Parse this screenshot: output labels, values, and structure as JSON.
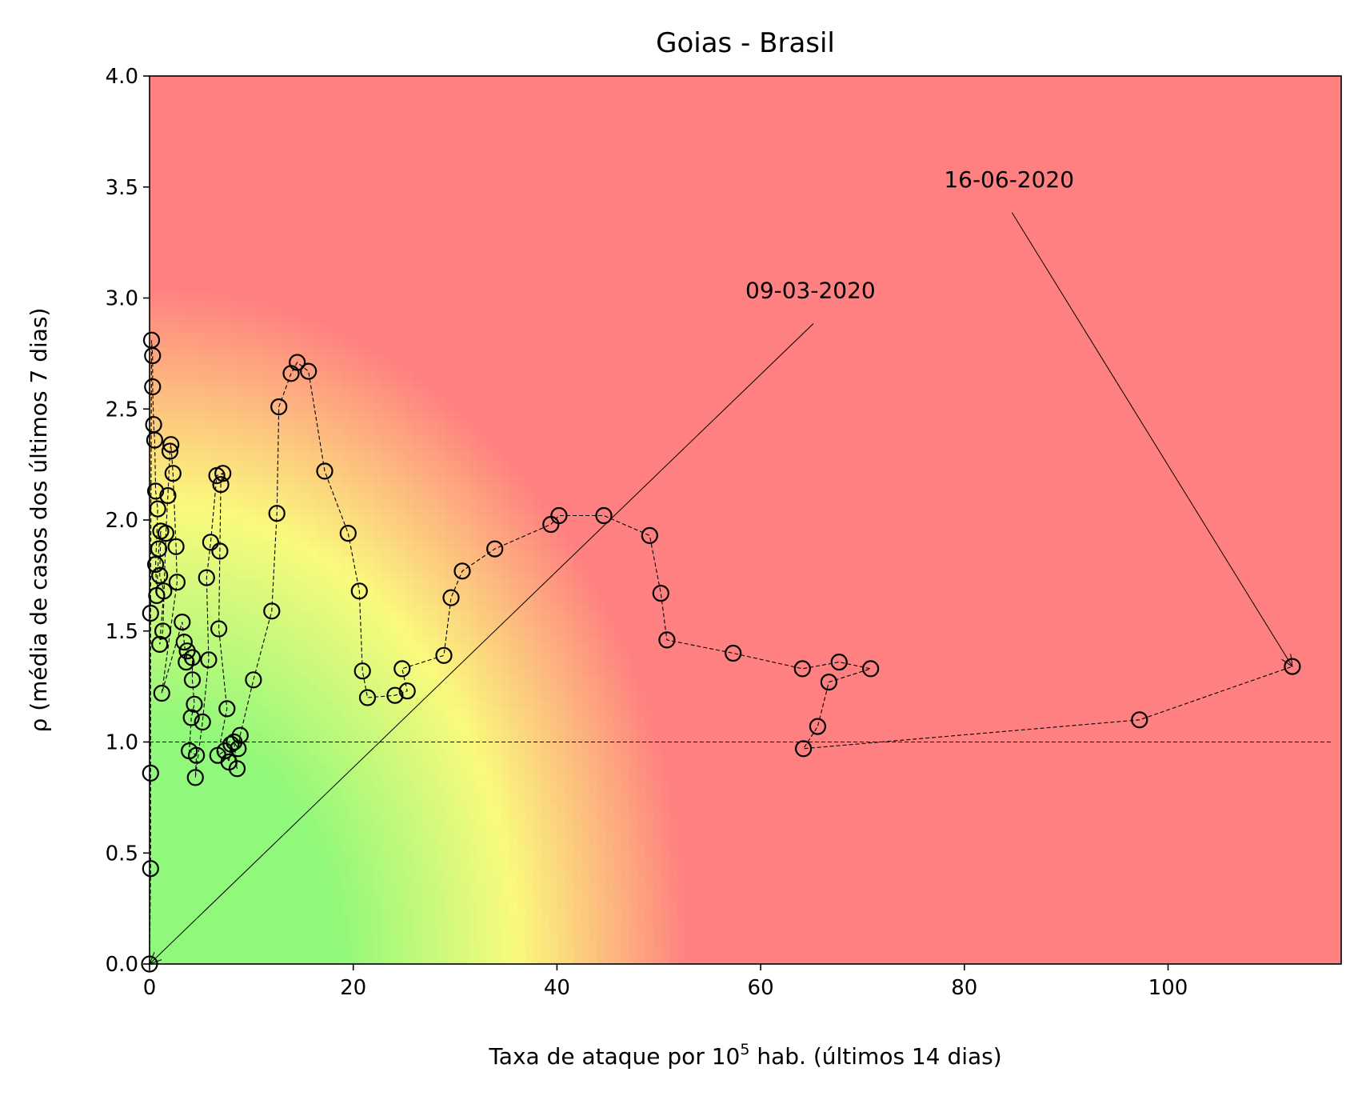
{
  "chart_data": {
    "type": "scatter",
    "title": "Goias - Brasil",
    "xlabel": {
      "pre": "Taxa de ataque por 10",
      "sup": "5",
      "post": " hab. (últimos 14 dias)"
    },
    "ylabel": "ρ (média de casos dos últimos 7 dias)",
    "xlim": [
      0,
      117
    ],
    "ylim": [
      0,
      4
    ],
    "xticks": [
      0,
      20,
      40,
      60,
      80,
      100
    ],
    "xtick_labels": [
      "0",
      "20",
      "40",
      "60",
      "80",
      "100"
    ],
    "yticks": [
      0,
      0.5,
      1,
      1.5,
      2,
      2.5,
      3,
      3.5,
      4
    ],
    "ytick_labels": [
      "0.0",
      "0.5",
      "1.0",
      "1.5",
      "2.0",
      "2.5",
      "3.0",
      "3.5",
      "4.0"
    ],
    "grid": false,
    "reference_line": {
      "y": 1.0,
      "style": "dashed",
      "color": "#000000"
    },
    "background": {
      "type": "risk-gradient",
      "colors": {
        "low": "#90f87a",
        "mid": "#fafa7d",
        "high": "#ff8080"
      }
    },
    "series": [
      {
        "marker": "open-circle",
        "line": "dashed",
        "color": "#000000",
        "points": [
          [
            0.0,
            0.0
          ],
          [
            0.1,
            0.43
          ],
          [
            0.1,
            0.86
          ],
          [
            0.1,
            1.58
          ],
          [
            0.2,
            2.81
          ],
          [
            0.3,
            2.74
          ],
          [
            0.3,
            2.6
          ],
          [
            0.4,
            2.43
          ],
          [
            0.5,
            2.36
          ],
          [
            0.6,
            2.13
          ],
          [
            0.6,
            1.8
          ],
          [
            0.7,
            1.66
          ],
          [
            0.8,
            2.05
          ],
          [
            0.9,
            1.87
          ],
          [
            1.0,
            1.75
          ],
          [
            1.0,
            1.44
          ],
          [
            1.1,
            1.95
          ],
          [
            1.2,
            1.22
          ],
          [
            1.3,
            1.5
          ],
          [
            1.4,
            1.68
          ],
          [
            1.6,
            1.94
          ],
          [
            1.8,
            2.11
          ],
          [
            2.0,
            2.31
          ],
          [
            2.1,
            2.34
          ],
          [
            2.3,
            2.21
          ],
          [
            2.6,
            1.88
          ],
          [
            2.7,
            1.72
          ],
          [
            3.2,
            1.54
          ],
          [
            3.4,
            1.45
          ],
          [
            3.6,
            1.36
          ],
          [
            3.7,
            1.41
          ],
          [
            3.9,
            0.96
          ],
          [
            4.1,
            1.11
          ],
          [
            4.2,
            1.38
          ],
          [
            4.2,
            1.28
          ],
          [
            4.4,
            1.17
          ],
          [
            4.5,
            0.84
          ],
          [
            4.6,
            0.94
          ],
          [
            5.2,
            1.09
          ],
          [
            5.6,
            1.74
          ],
          [
            5.8,
            1.37
          ],
          [
            6.0,
            1.9
          ],
          [
            6.6,
            2.2
          ],
          [
            6.7,
            0.94
          ],
          [
            6.8,
            1.51
          ],
          [
            6.9,
            1.86
          ],
          [
            7.0,
            2.16
          ],
          [
            7.2,
            2.21
          ],
          [
            7.4,
            0.96
          ],
          [
            7.6,
            1.15
          ],
          [
            7.8,
            0.91
          ],
          [
            8.0,
            0.99
          ],
          [
            8.3,
            1.0
          ],
          [
            8.6,
            0.88
          ],
          [
            8.7,
            0.97
          ],
          [
            8.9,
            1.03
          ],
          [
            10.2,
            1.28
          ],
          [
            12.0,
            1.59
          ],
          [
            12.5,
            2.03
          ],
          [
            12.7,
            2.51
          ],
          [
            13.9,
            2.66
          ],
          [
            14.5,
            2.71
          ],
          [
            15.6,
            2.67
          ],
          [
            17.2,
            2.22
          ],
          [
            19.5,
            1.94
          ],
          [
            20.6,
            1.68
          ],
          [
            20.9,
            1.32
          ],
          [
            21.4,
            1.2
          ],
          [
            24.1,
            1.21
          ],
          [
            24.8,
            1.33
          ],
          [
            25.3,
            1.23
          ],
          [
            28.9,
            1.39
          ],
          [
            29.6,
            1.65
          ],
          [
            30.7,
            1.77
          ],
          [
            33.9,
            1.87
          ],
          [
            39.4,
            1.98
          ],
          [
            40.2,
            2.02
          ],
          [
            44.6,
            2.02
          ],
          [
            49.1,
            1.93
          ],
          [
            50.2,
            1.67
          ],
          [
            50.8,
            1.46
          ],
          [
            57.3,
            1.4
          ],
          [
            64.1,
            1.33
          ],
          [
            64.2,
            0.97
          ],
          [
            65.6,
            1.07
          ],
          [
            66.7,
            1.27
          ],
          [
            67.7,
            1.36
          ],
          [
            70.8,
            1.33
          ],
          [
            97.2,
            1.1
          ],
          [
            112.2,
            1.34
          ]
        ],
        "path_order": [
          [
            0.0,
            0.0
          ],
          [
            0.1,
            0.43
          ],
          [
            0.1,
            0.86
          ],
          [
            0.1,
            1.58
          ],
          [
            0.2,
            2.81
          ],
          [
            0.3,
            2.74
          ],
          [
            0.3,
            2.6
          ],
          [
            0.4,
            2.43
          ],
          [
            0.5,
            2.36
          ],
          [
            0.6,
            2.13
          ],
          [
            0.8,
            2.05
          ],
          [
            0.6,
            1.8
          ],
          [
            0.7,
            1.66
          ],
          [
            0.9,
            1.87
          ],
          [
            1.1,
            1.95
          ],
          [
            1.0,
            1.75
          ],
          [
            1.4,
            1.68
          ],
          [
            1.0,
            1.44
          ],
          [
            1.3,
            1.5
          ],
          [
            1.6,
            1.94
          ],
          [
            1.8,
            2.11
          ],
          [
            2.0,
            2.31
          ],
          [
            2.1,
            2.34
          ],
          [
            2.3,
            2.21
          ],
          [
            2.6,
            1.88
          ],
          [
            2.7,
            1.72
          ],
          [
            1.2,
            1.22
          ],
          [
            3.2,
            1.54
          ],
          [
            3.4,
            1.45
          ],
          [
            3.6,
            1.36
          ],
          [
            3.7,
            1.41
          ],
          [
            4.2,
            1.38
          ],
          [
            4.2,
            1.28
          ],
          [
            4.4,
            1.17
          ],
          [
            4.1,
            1.11
          ],
          [
            3.9,
            0.96
          ],
          [
            4.6,
            0.94
          ],
          [
            4.5,
            0.84
          ],
          [
            5.2,
            1.09
          ],
          [
            5.8,
            1.37
          ],
          [
            5.6,
            1.74
          ],
          [
            6.0,
            1.9
          ],
          [
            6.6,
            2.2
          ],
          [
            7.2,
            2.21
          ],
          [
            7.0,
            2.16
          ],
          [
            6.9,
            1.86
          ],
          [
            6.8,
            1.51
          ],
          [
            7.6,
            1.15
          ],
          [
            6.7,
            0.94
          ],
          [
            7.4,
            0.96
          ],
          [
            7.8,
            0.91
          ],
          [
            8.0,
            0.99
          ],
          [
            8.6,
            0.88
          ],
          [
            8.3,
            1.0
          ],
          [
            8.7,
            0.97
          ],
          [
            8.9,
            1.03
          ],
          [
            10.2,
            1.28
          ],
          [
            12.0,
            1.59
          ],
          [
            12.5,
            2.03
          ],
          [
            12.7,
            2.51
          ],
          [
            13.9,
            2.66
          ],
          [
            14.5,
            2.71
          ],
          [
            15.6,
            2.67
          ],
          [
            17.2,
            2.22
          ],
          [
            19.5,
            1.94
          ],
          [
            20.6,
            1.68
          ],
          [
            20.9,
            1.32
          ],
          [
            21.4,
            1.2
          ],
          [
            24.1,
            1.21
          ],
          [
            25.3,
            1.23
          ],
          [
            24.8,
            1.33
          ],
          [
            28.9,
            1.39
          ],
          [
            29.6,
            1.65
          ],
          [
            30.7,
            1.77
          ],
          [
            33.9,
            1.87
          ],
          [
            39.4,
            1.98
          ],
          [
            40.2,
            2.02
          ],
          [
            44.6,
            2.02
          ],
          [
            49.1,
            1.93
          ],
          [
            50.2,
            1.67
          ],
          [
            50.8,
            1.46
          ],
          [
            57.3,
            1.4
          ],
          [
            64.1,
            1.33
          ],
          [
            67.7,
            1.36
          ],
          [
            70.8,
            1.33
          ],
          [
            66.7,
            1.27
          ],
          [
            65.6,
            1.07
          ],
          [
            64.2,
            0.97
          ],
          [
            97.2,
            1.1
          ],
          [
            112.2,
            1.34
          ]
        ]
      }
    ],
    "annotations": [
      {
        "label": "09-03-2020",
        "point": [
          0.0,
          0.0
        ],
        "text_pos": [
          58.5,
          3.0
        ]
      },
      {
        "label": "16-06-2020",
        "point": [
          112.2,
          1.34
        ],
        "text_pos": [
          78.0,
          3.5
        ]
      }
    ]
  }
}
